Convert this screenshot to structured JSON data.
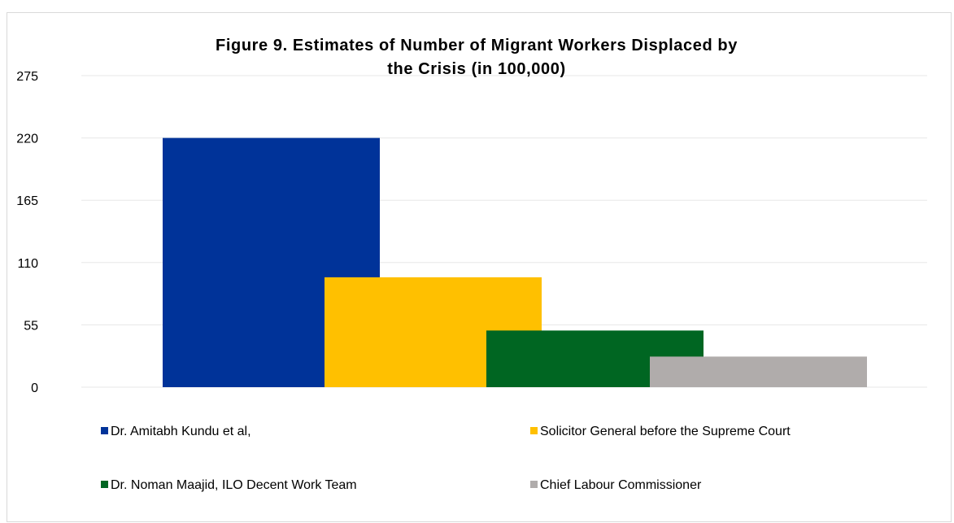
{
  "chart_data": {
    "type": "bar",
    "title_lines": [
      "Figure 9. Estimates of Number of Migrant Workers Displaced by",
      "the Crisis (in 100,000)"
    ],
    "xlabel": "",
    "ylabel": "",
    "ylim": [
      0,
      275
    ],
    "yticks": [
      0,
      55,
      110,
      165,
      220,
      275
    ],
    "grid": true,
    "legend_position": "bottom",
    "series": [
      {
        "name": "Dr. Amitabh Kundu et al,",
        "value": 220,
        "color": "#003399"
      },
      {
        "name": "Solicitor General before the Supreme Court",
        "value": 97,
        "color": "#ffc000"
      },
      {
        "name": "Dr. Noman Maajid, ILO Decent Work Team",
        "value": 50,
        "color": "#006622"
      },
      {
        "name": "Chief Labour Commissioner",
        "value": 27,
        "color": "#b0acab"
      }
    ]
  }
}
